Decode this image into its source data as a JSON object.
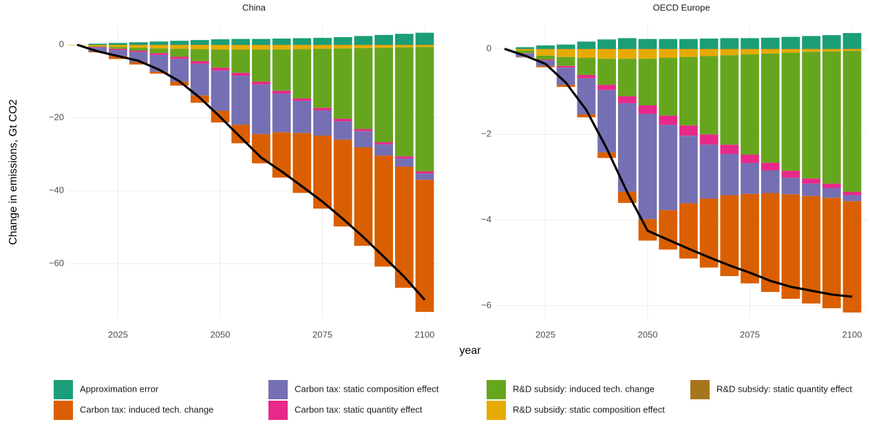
{
  "chart_data": {
    "type": "bar",
    "xlabel": "year",
    "ylabel": "Change in emissions, Gt CO2",
    "legend_position": "bottom",
    "grid": true,
    "x": [
      2015,
      2020,
      2025,
      2030,
      2035,
      2040,
      2045,
      2050,
      2055,
      2060,
      2065,
      2070,
      2075,
      2080,
      2085,
      2090,
      2095,
      2100
    ],
    "xlim": [
      2012.8,
      2103.7
    ],
    "xticks": [
      2025,
      2050,
      2075,
      2100
    ],
    "line_color": "#000000",
    "legend": [
      {
        "name": "Approximation error",
        "color": "#1b9e77"
      },
      {
        "name": "Carbon tax: induced tech. change",
        "color": "#d95f02"
      },
      {
        "name": "Carbon tax: static composition effect",
        "color": "#7570b3"
      },
      {
        "name": "Carbon tax: static quantity effect",
        "color": "#e7298a"
      },
      {
        "name": "R&D subsidy: induced tech. change",
        "color": "#66a61e"
      },
      {
        "name": "R&D subsidy: static composition effect",
        "color": "#e6ab02"
      },
      {
        "name": "R&D subsidy: static quantity effect",
        "color": "#a6761d"
      }
    ],
    "panels": [
      {
        "title": "China",
        "ylim": [
          -74.9,
          5.1
        ],
        "yticks": [
          {
            "value": -60,
            "label": "−60"
          },
          {
            "value": -40,
            "label": "−40"
          },
          {
            "value": -20,
            "label": "−20"
          },
          0
        ],
        "series": [
          {
            "values": [
              0,
              0.3,
              0.5,
              0.7,
              0.9,
              1.1,
              1.3,
              1.5,
              1.6,
              1.6,
              1.7,
              1.8,
              1.9,
              2.1,
              2.4,
              2.7,
              3.0,
              3.3
            ]
          },
          {
            "values": [
              0,
              -0.2,
              -0.8,
              -0.6,
              -0.5,
              -1.1,
              -2.0,
              -3.2,
              -5.1,
              -8.0,
              -12.4,
              -16.4,
              -20.0,
              -23.8,
              -27.0,
              -30.4,
              -33.2,
              -36.2
            ]
          },
          {
            "values": [
              0,
              -1.1,
              -1.7,
              -2.8,
              -4.6,
              -6.2,
              -8.7,
              -11.0,
              -13.4,
              -13.6,
              -10.6,
              -8.8,
              -6.9,
              -5.0,
              -4.4,
              -3.1,
              -2.2,
              -1.7
            ]
          },
          {
            "values": [
              0,
              -0.2,
              -0.3,
              -0.4,
              -0.5,
              -0.6,
              -0.7,
              -0.8,
              -0.8,
              -0.8,
              -0.8,
              -0.7,
              -0.7,
              -0.7,
              -0.6,
              -0.6,
              -0.6,
              -0.6
            ]
          },
          {
            "values": [
              0,
              -0.2,
              -0.5,
              -0.8,
              -1.3,
              -2.2,
              -3.3,
              -5.0,
              -6.4,
              -8.8,
              -11.3,
              -13.5,
              -16.2,
              -19.3,
              -22.2,
              -25.9,
              -29.9,
              -34.1
            ]
          },
          {
            "values": [
              -0.1,
              -0.3,
              -0.5,
              -0.7,
              -0.9,
              -1.0,
              -1.1,
              -1.2,
              -1.2,
              -1.2,
              -1.2,
              -1.1,
              -1.0,
              -0.9,
              -0.8,
              -0.7,
              -0.6,
              -0.5
            ]
          },
          {
            "values": [
              0,
              -0.1,
              -0.1,
              -0.1,
              -0.1,
              -0.1,
              -0.1,
              -0.1,
              -0.1,
              -0.1,
              -0.1,
              -0.1,
              -0.1,
              -0.1,
              -0.1,
              -0.1,
              -0.1,
              -0.1
            ]
          }
        ],
        "line": {
          "values": [
            0,
            -1.8,
            -3.1,
            -4.4,
            -6.8,
            -10.0,
            -14.5,
            -19.8,
            -25.4,
            -30.9,
            -34.7,
            -38.8,
            -43.0,
            -47.7,
            -52.7,
            -58.1,
            -63.6,
            -69.9
          ]
        }
      },
      {
        "title": "OECD Europe",
        "ylim": [
          -6.29,
          0.53
        ],
        "yticks": [
          {
            "value": -6,
            "label": "−6"
          },
          {
            "value": -4,
            "label": "−4"
          },
          {
            "value": -2,
            "label": "−2"
          },
          0
        ],
        "series": [
          {
            "values": [
              0,
              0.04,
              0.08,
              0.1,
              0.17,
              0.22,
              0.25,
              0.23,
              0.23,
              0.23,
              0.24,
              0.25,
              0.25,
              0.26,
              0.28,
              0.3,
              0.32,
              0.37
            ]
          },
          {
            "values": [
              0,
              -0.01,
              -0.03,
              -0.05,
              -0.07,
              -0.13,
              -0.26,
              -0.5,
              -0.92,
              -1.29,
              -1.61,
              -1.89,
              -2.09,
              -2.31,
              -2.44,
              -2.51,
              -2.58,
              -2.6
            ]
          },
          {
            "values": [
              0,
              -0.08,
              -0.13,
              -0.4,
              -0.84,
              -1.46,
              -2.07,
              -2.46,
              -1.99,
              -1.58,
              -1.26,
              -0.96,
              -0.72,
              -0.53,
              -0.39,
              -0.29,
              -0.23,
              -0.14
            ]
          },
          {
            "values": [
              0,
              -0.01,
              -0.02,
              -0.04,
              -0.08,
              -0.12,
              -0.16,
              -0.2,
              -0.22,
              -0.24,
              -0.24,
              -0.22,
              -0.2,
              -0.18,
              -0.16,
              -0.12,
              -0.1,
              -0.08
            ]
          },
          {
            "values": [
              0,
              -0.06,
              -0.09,
              -0.21,
              -0.4,
              -0.61,
              -0.88,
              -1.09,
              -1.35,
              -1.6,
              -1.83,
              -2.09,
              -2.34,
              -2.55,
              -2.76,
              -2.96,
              -3.09,
              -3.29
            ]
          },
          {
            "values": [
              0,
              -0.03,
              -0.15,
              -0.18,
              -0.2,
              -0.22,
              -0.22,
              -0.22,
              -0.2,
              -0.18,
              -0.16,
              -0.14,
              -0.12,
              -0.1,
              -0.08,
              -0.06,
              -0.05,
              -0.04
            ]
          },
          {
            "values": [
              0,
              -0.01,
              -0.01,
              -0.01,
              -0.01,
              -0.01,
              -0.01,
              -0.01,
              -0.01,
              -0.01,
              -0.01,
              -0.01,
              -0.01,
              -0.01,
              -0.01,
              -0.01,
              -0.01,
              -0.01
            ]
          }
        ],
        "line": {
          "values": [
            0,
            -0.16,
            -0.35,
            -0.79,
            -1.43,
            -2.33,
            -3.35,
            -4.25,
            -4.46,
            -4.67,
            -4.87,
            -5.06,
            -5.23,
            -5.42,
            -5.56,
            -5.65,
            -5.74,
            -5.79
          ]
        }
      }
    ]
  }
}
